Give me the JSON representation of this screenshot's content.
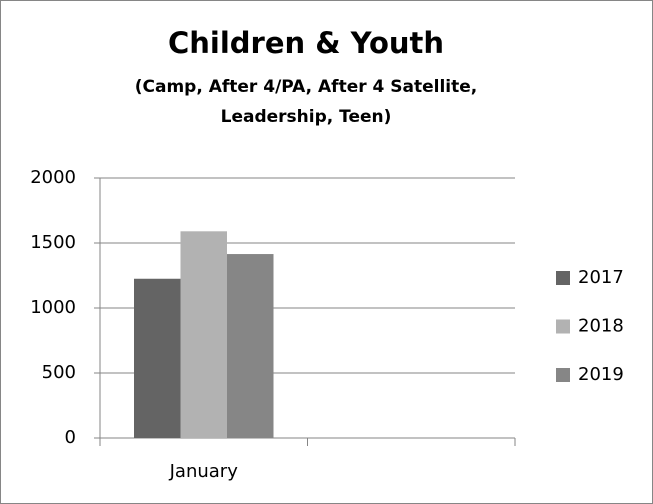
{
  "chart_data": {
    "type": "bar",
    "title": "Children & Youth",
    "subtitle": [
      "(Camp, After 4/PA, After 4 Satellite,",
      "Leadership, Teen)"
    ],
    "categories": [
      "January",
      null
    ],
    "series": [
      {
        "name": "2017",
        "color": "#646464",
        "values": [
          1225,
          null
        ]
      },
      {
        "name": "2018",
        "color": "#b2b2b2",
        "values": [
          1590,
          null
        ]
      },
      {
        "name": "2019",
        "color": "#868686",
        "values": [
          1415,
          null
        ]
      }
    ],
    "ylim": [
      0,
      2000
    ],
    "yticks": [
      0,
      500,
      1000,
      1500,
      2000
    ],
    "grid": true,
    "legend": "right"
  }
}
